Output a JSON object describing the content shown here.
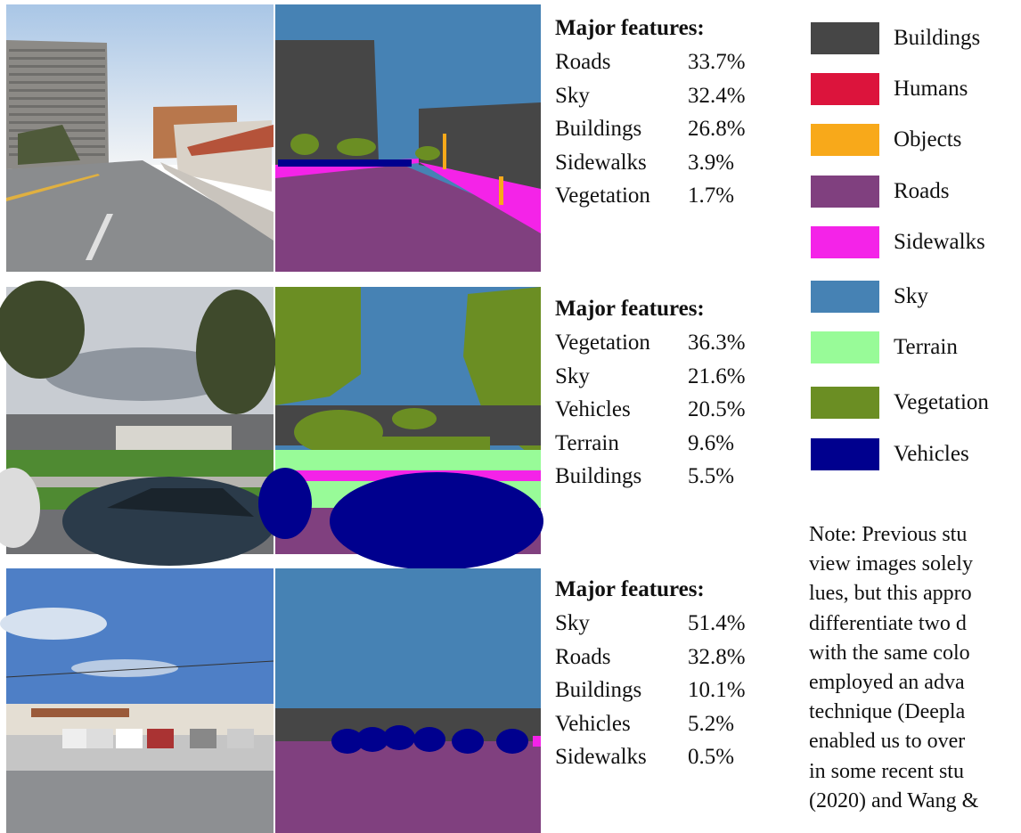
{
  "rows": [
    {
      "heading": "Major features:",
      "features": [
        {
          "label": "Roads",
          "value": "33.7%"
        },
        {
          "label": "Sky",
          "value": "32.4%"
        },
        {
          "label": "Buildings",
          "value": "26.8%"
        },
        {
          "label": "Sidewalks",
          "value": "3.9%"
        },
        {
          "label": "Vegetation",
          "value": "1.7%"
        }
      ]
    },
    {
      "heading": "Major features:",
      "features": [
        {
          "label": "Vegetation",
          "value": "36.3%"
        },
        {
          "label": "Sky",
          "value": "21.6%"
        },
        {
          "label": "Vehicles",
          "value": "20.5%"
        },
        {
          "label": "Terrain",
          "value": "9.6%"
        },
        {
          "label": "Buildings",
          "value": "5.5%"
        }
      ]
    },
    {
      "heading": "Major features:",
      "features": [
        {
          "label": "Sky",
          "value": "51.4%"
        },
        {
          "label": "Roads",
          "value": "32.8%"
        },
        {
          "label": "Buildings",
          "value": "10.1%"
        },
        {
          "label": "Vehicles",
          "value": "5.2%"
        },
        {
          "label": "Sidewalks",
          "value": "0.5%"
        }
      ]
    }
  ],
  "legend": [
    {
      "label": "Buildings",
      "color": "#464646"
    },
    {
      "label": "Humans",
      "color": "#dc143c"
    },
    {
      "label": "Objects",
      "color": "#f8a91a"
    },
    {
      "label": "Roads",
      "color": "#80407f"
    },
    {
      "label": "Sidewalks",
      "color": "#f423e8"
    },
    {
      "label": "Sky",
      "color": "#4682b4"
    },
    {
      "label": "Terrain",
      "color": "#98fb98"
    },
    {
      "label": "Vegetation",
      "color": "#6b8e23"
    },
    {
      "label": "Vehicles",
      "color": "#00008e"
    }
  ],
  "note": [
    "Note: Previous stu",
    "view images solely",
    "lues, but this appro",
    "differentiate two d",
    "with the same colo",
    "employed an adva",
    "technique (Deepla",
    "enabled us to over",
    "in some recent stu",
    "(2020) and Wang &amp;"
  ]
}
